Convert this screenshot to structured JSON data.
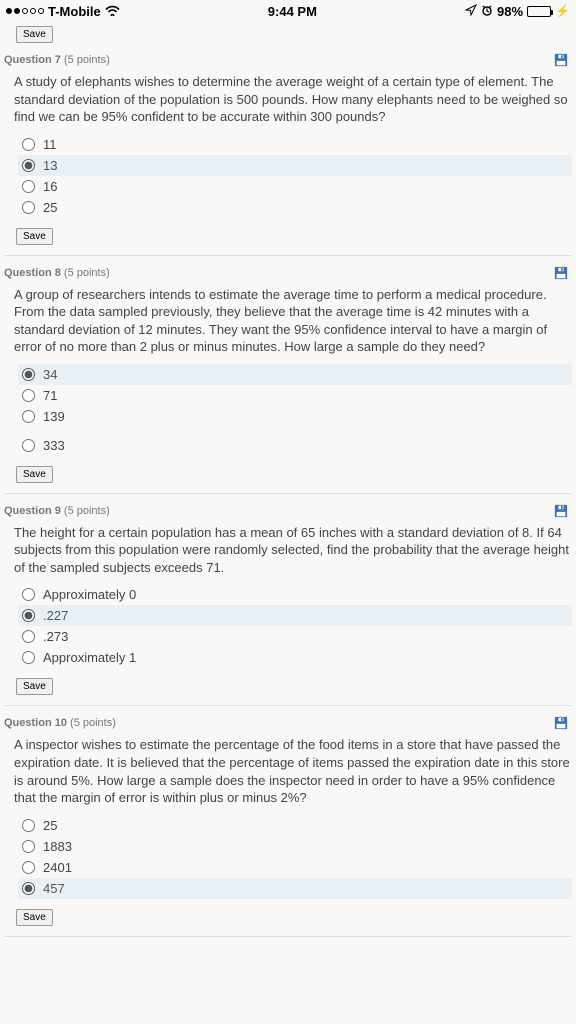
{
  "status_bar": {
    "carrier": "T-Mobile",
    "time": "9:44 PM",
    "battery_pct": "98%",
    "battery_fill_pct": 98
  },
  "top_save": "Save",
  "questions": [
    {
      "title": "Question 7",
      "points": "(5 points)",
      "text": "A study of elephants wishes to determine the average weight of a certain type of element. The standard deviation of the population is 500 pounds. How many elephants need to be weighed so find we can be 95% confident to be accurate within 300 pounds?",
      "options": [
        "11",
        "13",
        "16",
        "25"
      ],
      "selected": 1,
      "save": "Save"
    },
    {
      "title": "Question 8",
      "points": "(5 points)",
      "text": "A group of researchers intends to estimate the average time to perform a medical procedure. From the data sampled previously, they believe that the average time is 42 minutes with a standard deviation of 12 minutes. They want the 95% confidence interval to have a margin of error of no more than 2 plus or minus minutes. How large a sample do they need?",
      "options": [
        "34",
        "71",
        "139",
        "333"
      ],
      "selected": 0,
      "save": "Save"
    },
    {
      "title": "Question 9",
      "points": "(5 points)",
      "text": "The height for a certain population has a mean of 65 inches with a standard deviation of 8. If 64 subjects from this population were randomly selected, find the probability that the average height of the sampled subjects exceeds 71.",
      "options": [
        "Approximately 0",
        ".227",
        ".273",
        "Approximately 1"
      ],
      "selected": 1,
      "save": "Save"
    },
    {
      "title": "Question 10",
      "points": "(5 points)",
      "text": "A inspector wishes to estimate the percentage of the food items in a store that have passed the expiration date. It is believed that the percentage of items passed the expiration date in this store is around 5%. How large a sample does the inspector need in order to have a 95% confidence that the margin of error is within plus or minus 2%?",
      "options": [
        "25",
        "1883",
        "2401",
        "457"
      ],
      "selected": 3,
      "save": "Save"
    }
  ],
  "colors": {
    "selected_bg": "#e8f0f5",
    "text": "#444",
    "muted": "#777",
    "disk_blue": "#3b6fb6"
  }
}
